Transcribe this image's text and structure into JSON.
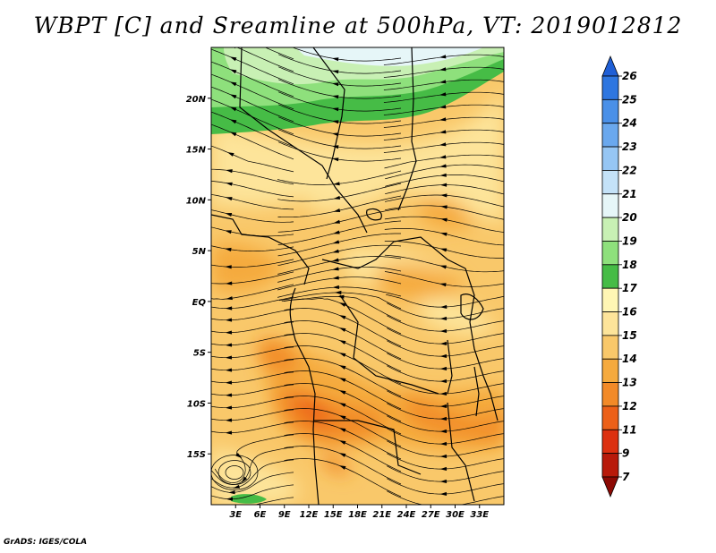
{
  "title": "WBPT [C] and Sreamline at 500hPa, VT: 2019012812",
  "credit": "GrADS: IGES/COLA",
  "map": {
    "lon_range": [
      0,
      36
    ],
    "lat_range": [
      -20,
      25
    ],
    "x_ticks": [
      {
        "value": 3,
        "label": "3E"
      },
      {
        "value": 6,
        "label": "6E"
      },
      {
        "value": 9,
        "label": "9E"
      },
      {
        "value": 12,
        "label": "12E"
      },
      {
        "value": 15,
        "label": "15E"
      },
      {
        "value": 18,
        "label": "18E"
      },
      {
        "value": 21,
        "label": "21E"
      },
      {
        "value": 24,
        "label": "24E"
      },
      {
        "value": 27,
        "label": "27E"
      },
      {
        "value": 30,
        "label": "30E"
      },
      {
        "value": 33,
        "label": "33E"
      }
    ],
    "y_ticks": [
      {
        "value": 20,
        "label": "20N"
      },
      {
        "value": 15,
        "label": "15N"
      },
      {
        "value": 10,
        "label": "10N"
      },
      {
        "value": 5,
        "label": "5N"
      },
      {
        "value": 0,
        "label": "EQ"
      },
      {
        "value": -5,
        "label": "5S"
      },
      {
        "value": -10,
        "label": "10S"
      },
      {
        "value": -15,
        "label": "15S"
      }
    ]
  },
  "colorbar": {
    "levels": [
      "7",
      "9",
      "11",
      "12",
      "13",
      "14",
      "15",
      "16",
      "17",
      "18",
      "19",
      "20",
      "21",
      "22",
      "23",
      "24",
      "25",
      "26"
    ],
    "colors": [
      "#1f5fd6",
      "#2e76e0",
      "#4a90e8",
      "#6aa8ee",
      "#96c6f4",
      "#c4e2f8",
      "#e6f6f8",
      "#c8f0b4",
      "#8ee07c",
      "#46bc46",
      "#fff6b4",
      "#fde49a",
      "#f9c86a",
      "#f5aa3e",
      "#f28a28",
      "#ec6018",
      "#dc3010",
      "#b81a0a",
      "#8c0a04"
    ]
  }
}
